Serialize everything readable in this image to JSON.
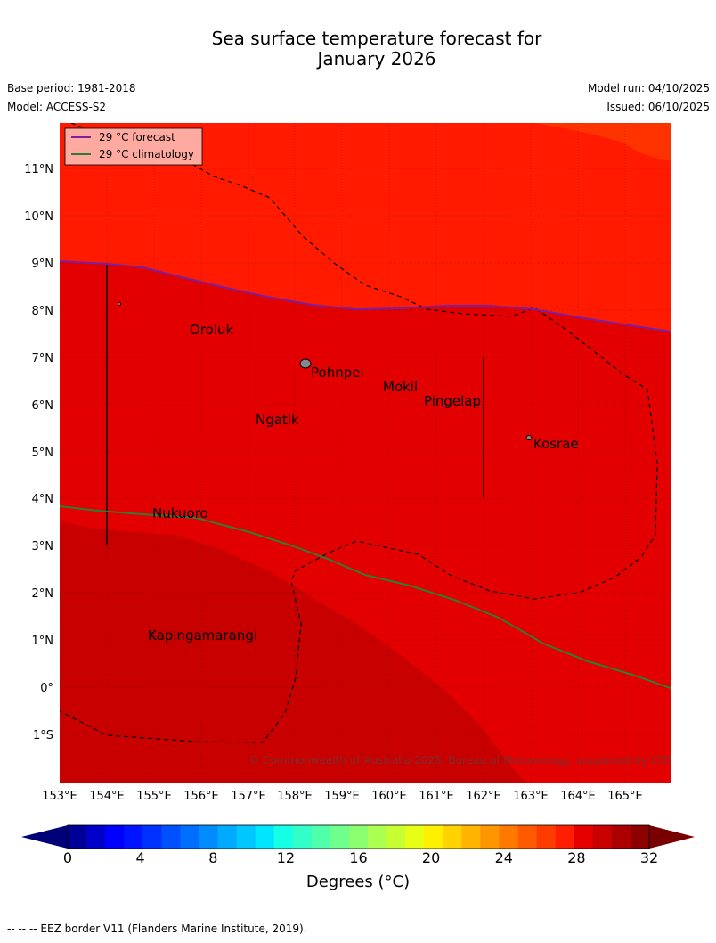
{
  "title": {
    "line1": "Sea surface temperature forecast for",
    "line2": "January 2026"
  },
  "meta": {
    "base_period": "Base period: 1981-2018",
    "model": "Model: ACCESS-S2",
    "model_run": "Model run: 04/10/2025",
    "issued": "Issued: 06/10/2025"
  },
  "map": {
    "lat_labels": [
      "11°N",
      "10°N",
      "9°N",
      "8°N",
      "7°N",
      "6°N",
      "5°N",
      "4°N",
      "3°N",
      "2°N",
      "1°N",
      "0°",
      "1°S"
    ],
    "lon_labels": [
      "153°E",
      "154°E",
      "155°E",
      "156°E",
      "157°E",
      "158°E",
      "159°E",
      "160°E",
      "161°E",
      "162°E",
      "163°E",
      "164°E",
      "165°E"
    ],
    "places": [
      "Oroluk",
      "Pohnpei",
      "Mokil",
      "Pingelap",
      "Ngatik",
      "Kosrae",
      "Nukuoro",
      "Kapingamarangi"
    ],
    "copyright": "© Commonwealth of Australia 2025, Bureau of Meteorology, supported by COSPPac",
    "legend": {
      "forecast": "29 °C  forecast",
      "climatology": "29 °C  climatology",
      "forecast_color": "#7b1fa2",
      "climatology_color": "#2e7d32"
    },
    "colors": {
      "band_30_31": "#ff1a00",
      "band_29_30": "#e30000",
      "band_28_29": "#c80000",
      "band_31_32": "#ff3300"
    }
  },
  "colorbar": {
    "tick_labels": [
      "0",
      "4",
      "8",
      "12",
      "16",
      "20",
      "24",
      "28",
      "32"
    ],
    "label": "Degrees (°C)",
    "colors": [
      "#000096",
      "#0000c8",
      "#0000ff",
      "#0014ff",
      "#0032ff",
      "#0050ff",
      "#006eff",
      "#008cff",
      "#00aaff",
      "#00c8ff",
      "#00e6ff",
      "#14ffe6",
      "#32ffc8",
      "#50ffaa",
      "#6eff8c",
      "#8cff6e",
      "#aaff50",
      "#c8ff32",
      "#e6ff14",
      "#fff000",
      "#ffd200",
      "#ffb400",
      "#ff9600",
      "#ff7800",
      "#ff5a00",
      "#ff3c00",
      "#ff1e00",
      "#e60000",
      "#c80000",
      "#aa0000",
      "#8c0000"
    ],
    "under_color": "#000078",
    "over_color": "#780000"
  },
  "footnote": "-- -- -- EEZ border V11 (Flanders Marine Institute, 2019)."
}
